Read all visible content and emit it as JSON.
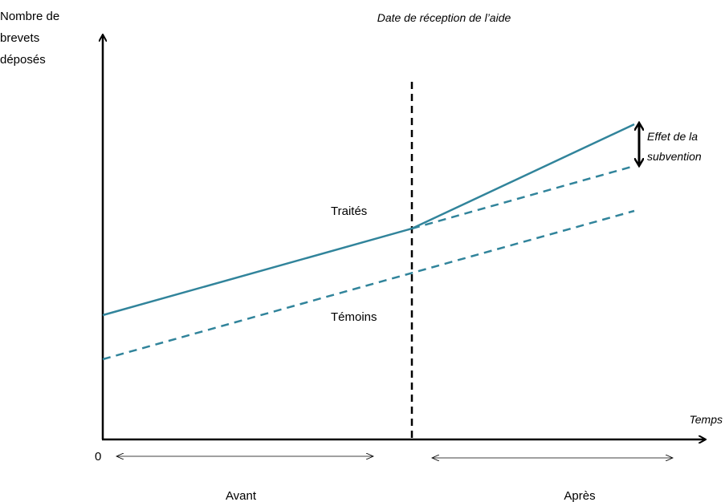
{
  "y_axis_label": [
    "Nombre de",
    "brevets",
    "déposés"
  ],
  "event_label": "Date de réception de l’aide",
  "x_axis_label": "Temps",
  "origin_label": "0",
  "periods": [
    "Avant",
    "Après"
  ],
  "groups": {
    "treated": "Traités",
    "control": "Témoins"
  },
  "effect_label": [
    "Effet de la",
    "subvention"
  ]
}
